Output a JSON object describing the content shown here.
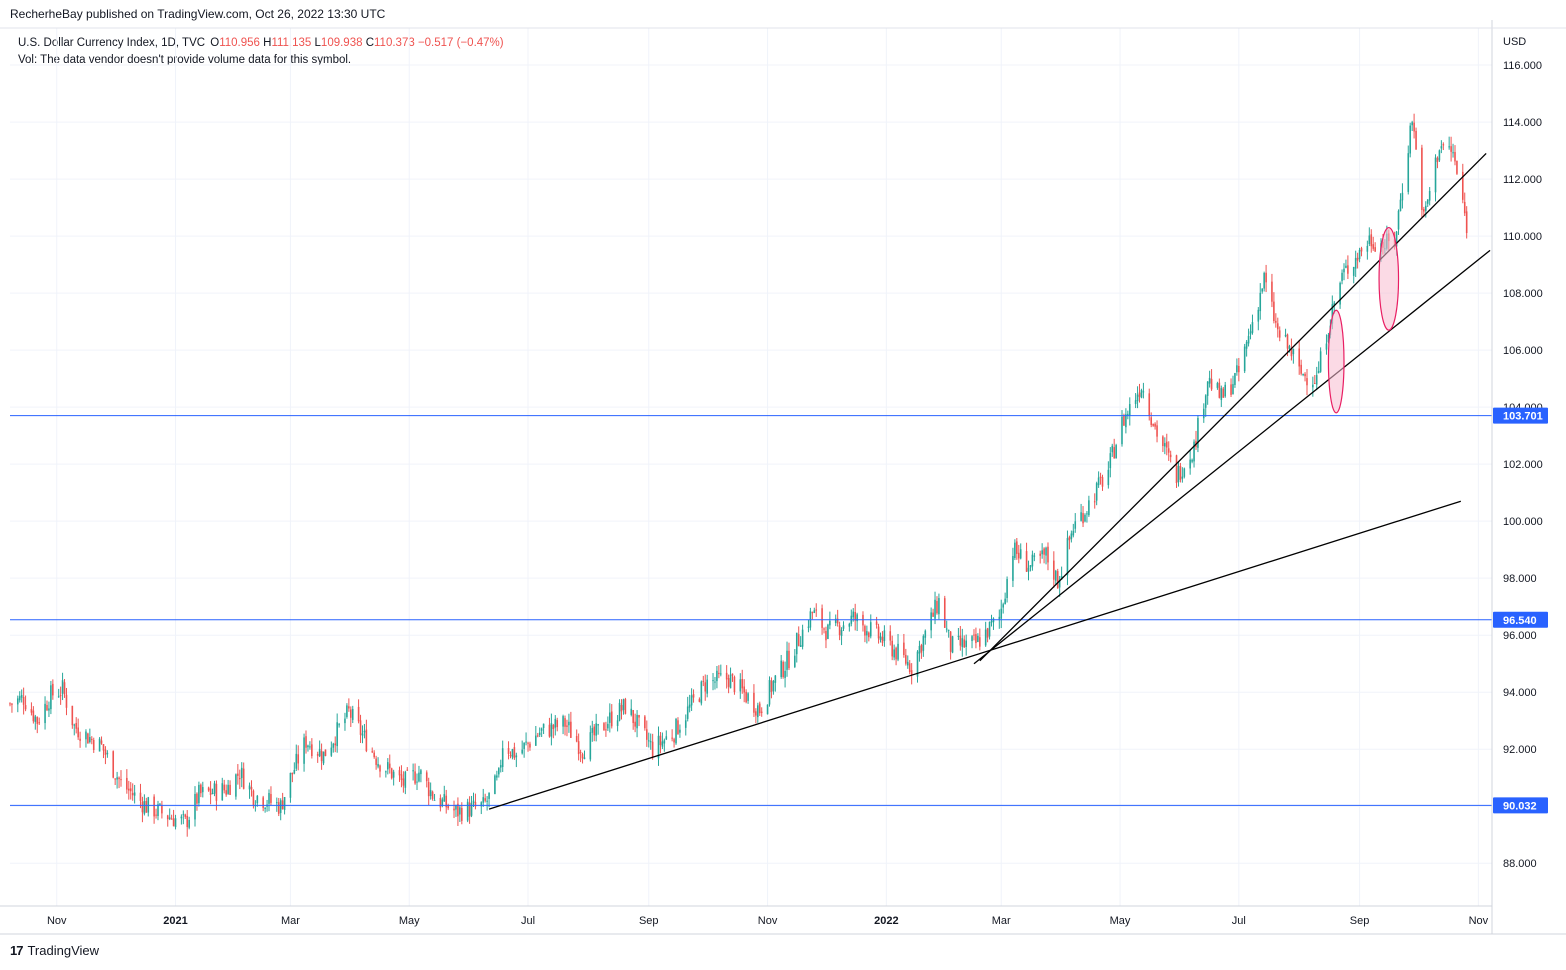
{
  "header": {
    "published_by": "RecherheBay published on TradingView.com, Oct 26, 2022 13:30 UTC"
  },
  "legend": {
    "symbol": "U.S. Dollar Currency Index, 1D, TVC",
    "open_key": "O",
    "open": "110.956",
    "high_key": "H",
    "high": "111.135",
    "low_key": "L",
    "low": "109.938",
    "close_key": "C",
    "close": "110.373",
    "change": "−0.517 (−0.47%)",
    "volume_note": "Vol: The data vendor doesn't provide volume data for this symbol."
  },
  "footer": {
    "brand": "TradingView",
    "logo": "17"
  },
  "colors": {
    "up": "#26a69a",
    "down": "#ef5350",
    "hline": "#2962ff",
    "trendline": "#000000",
    "grid": "#f0f3fa",
    "ellipse_fill": "#f8bbd0",
    "ellipse_stroke": "#e91e63"
  },
  "chart_data": {
    "type": "candlestick",
    "symbol": "U.S. Dollar Currency Index",
    "timeframe": "1D",
    "y_axis": {
      "unit_label": "USD",
      "range": [
        86.5,
        117.3
      ],
      "ticks": [
        "116.000",
        "114.000",
        "112.000",
        "110.000",
        "108.000",
        "106.000",
        "104.000",
        "102.000",
        "100.000",
        "98.000",
        "96.000",
        "94.000",
        "92.000",
        "90.000",
        "88.000"
      ]
    },
    "x_axis": {
      "range": [
        "2020-10-08",
        "2022-11-08"
      ],
      "ticks": [
        {
          "date": "2020-11-01",
          "label": "Nov",
          "bold": false
        },
        {
          "date": "2021-01-01",
          "label": "2021",
          "bold": true
        },
        {
          "date": "2021-03-01",
          "label": "Mar",
          "bold": false
        },
        {
          "date": "2021-05-01",
          "label": "May",
          "bold": false
        },
        {
          "date": "2021-07-01",
          "label": "Jul",
          "bold": false
        },
        {
          "date": "2021-09-01",
          "label": "Sep",
          "bold": false
        },
        {
          "date": "2021-11-01",
          "label": "Nov",
          "bold": false
        },
        {
          "date": "2022-01-01",
          "label": "2022",
          "bold": true
        },
        {
          "date": "2022-03-01",
          "label": "Mar",
          "bold": false
        },
        {
          "date": "2022-05-01",
          "label": "May",
          "bold": false
        },
        {
          "date": "2022-07-01",
          "label": "Jul",
          "bold": false
        },
        {
          "date": "2022-09-01",
          "label": "Sep",
          "bold": false
        },
        {
          "date": "2022-11-01",
          "label": "Nov",
          "bold": false
        }
      ]
    },
    "price_path": [
      [
        "2020-10-08",
        93.6
      ],
      [
        "2020-10-15",
        93.8
      ],
      [
        "2020-10-22",
        93.0
      ],
      [
        "2020-10-29",
        93.9
      ],
      [
        "2020-11-04",
        94.1
      ],
      [
        "2020-11-10",
        92.8
      ],
      [
        "2020-11-24",
        92.1
      ],
      [
        "2020-12-04",
        90.8
      ],
      [
        "2020-12-17",
        90.0
      ],
      [
        "2021-01-06",
        89.4
      ],
      [
        "2021-01-13",
        90.4
      ],
      [
        "2021-01-27",
        90.6
      ],
      [
        "2021-02-03",
        91.2
      ],
      [
        "2021-02-10",
        90.4
      ],
      [
        "2021-02-24",
        90.0
      ],
      [
        "2021-03-01",
        91.0
      ],
      [
        "2021-03-09",
        92.3
      ],
      [
        "2021-03-18",
        91.8
      ],
      [
        "2021-03-31",
        93.3
      ],
      [
        "2021-04-15",
        91.6
      ],
      [
        "2021-04-28",
        90.8
      ],
      [
        "2021-05-06",
        91.2
      ],
      [
        "2021-05-14",
        90.3
      ],
      [
        "2021-05-25",
        89.8
      ],
      [
        "2021-06-08",
        90.0
      ],
      [
        "2021-06-11",
        90.3
      ],
      [
        "2021-06-16",
        91.0
      ],
      [
        "2021-06-18",
        92.2
      ],
      [
        "2021-06-25",
        91.8
      ],
      [
        "2021-07-07",
        92.6
      ],
      [
        "2021-07-20",
        92.9
      ],
      [
        "2021-07-29",
        92.0
      ],
      [
        "2021-08-11",
        93.0
      ],
      [
        "2021-08-20",
        93.5
      ],
      [
        "2021-09-03",
        92.0
      ],
      [
        "2021-09-14",
        92.6
      ],
      [
        "2021-09-30",
        94.3
      ],
      [
        "2021-10-12",
        94.5
      ],
      [
        "2021-10-28",
        93.4
      ],
      [
        "2021-11-03",
        94.2
      ],
      [
        "2021-11-12",
        95.2
      ],
      [
        "2021-11-24",
        96.8
      ],
      [
        "2021-12-02",
        96.1
      ],
      [
        "2021-12-15",
        96.6
      ],
      [
        "2021-12-31",
        95.8
      ],
      [
        "2022-01-14",
        94.9
      ],
      [
        "2022-01-28",
        97.2
      ],
      [
        "2022-02-03",
        95.6
      ],
      [
        "2022-02-16",
        95.7
      ],
      [
        "2022-02-28",
        96.6
      ],
      [
        "2022-03-07",
        99.0
      ],
      [
        "2022-03-16",
        98.4
      ],
      [
        "2022-03-24",
        98.8
      ],
      [
        "2022-03-30",
        97.9
      ],
      [
        "2022-04-07",
        99.8
      ],
      [
        "2022-04-14",
        100.5
      ],
      [
        "2022-04-25",
        101.8
      ],
      [
        "2022-05-01",
        103.3
      ],
      [
        "2022-05-12",
        104.8
      ],
      [
        "2022-05-20",
        103.1
      ],
      [
        "2022-05-30",
        101.6
      ],
      [
        "2022-06-08",
        102.6
      ],
      [
        "2022-06-15",
        105.0
      ],
      [
        "2022-06-22",
        104.3
      ],
      [
        "2022-07-01",
        105.2
      ],
      [
        "2022-07-14",
        108.5
      ],
      [
        "2022-07-21",
        106.6
      ],
      [
        "2022-07-29",
        105.8
      ],
      [
        "2022-08-01",
        105.2
      ],
      [
        "2022-08-10",
        105.0
      ],
      [
        "2022-08-16",
        106.9
      ],
      [
        "2022-08-23",
        108.6
      ],
      [
        "2022-09-06",
        109.9
      ],
      [
        "2022-09-14",
        109.7
      ],
      [
        "2022-09-19",
        109.8
      ],
      [
        "2022-09-28",
        114.2
      ],
      [
        "2022-10-04",
        110.6
      ],
      [
        "2022-10-12",
        113.2
      ],
      [
        "2022-10-19",
        112.9
      ],
      [
        "2022-10-26",
        110.4
      ]
    ],
    "horizontal_levels": [
      {
        "price": 103.701,
        "label": "103.701"
      },
      {
        "price": 96.54,
        "label": "96.540"
      },
      {
        "price": 90.032,
        "label": "90.032"
      }
    ],
    "trendlines": [
      {
        "from": [
          "2021-06-11",
          89.9
        ],
        "to": [
          "2022-10-23",
          100.7
        ]
      },
      {
        "from": [
          "2022-02-15",
          95.0
        ],
        "to": [
          "2022-11-07",
          109.5
        ]
      },
      {
        "from": [
          "2022-02-18",
          95.1
        ],
        "to": [
          "2022-11-05",
          112.9
        ]
      }
    ],
    "highlights": [
      {
        "center": [
          "2022-08-20",
          105.6
        ],
        "rx_days": 4,
        "ry_price": 1.8
      },
      {
        "center": [
          "2022-09-16",
          108.5
        ],
        "rx_days": 5,
        "ry_price": 1.8
      }
    ]
  }
}
